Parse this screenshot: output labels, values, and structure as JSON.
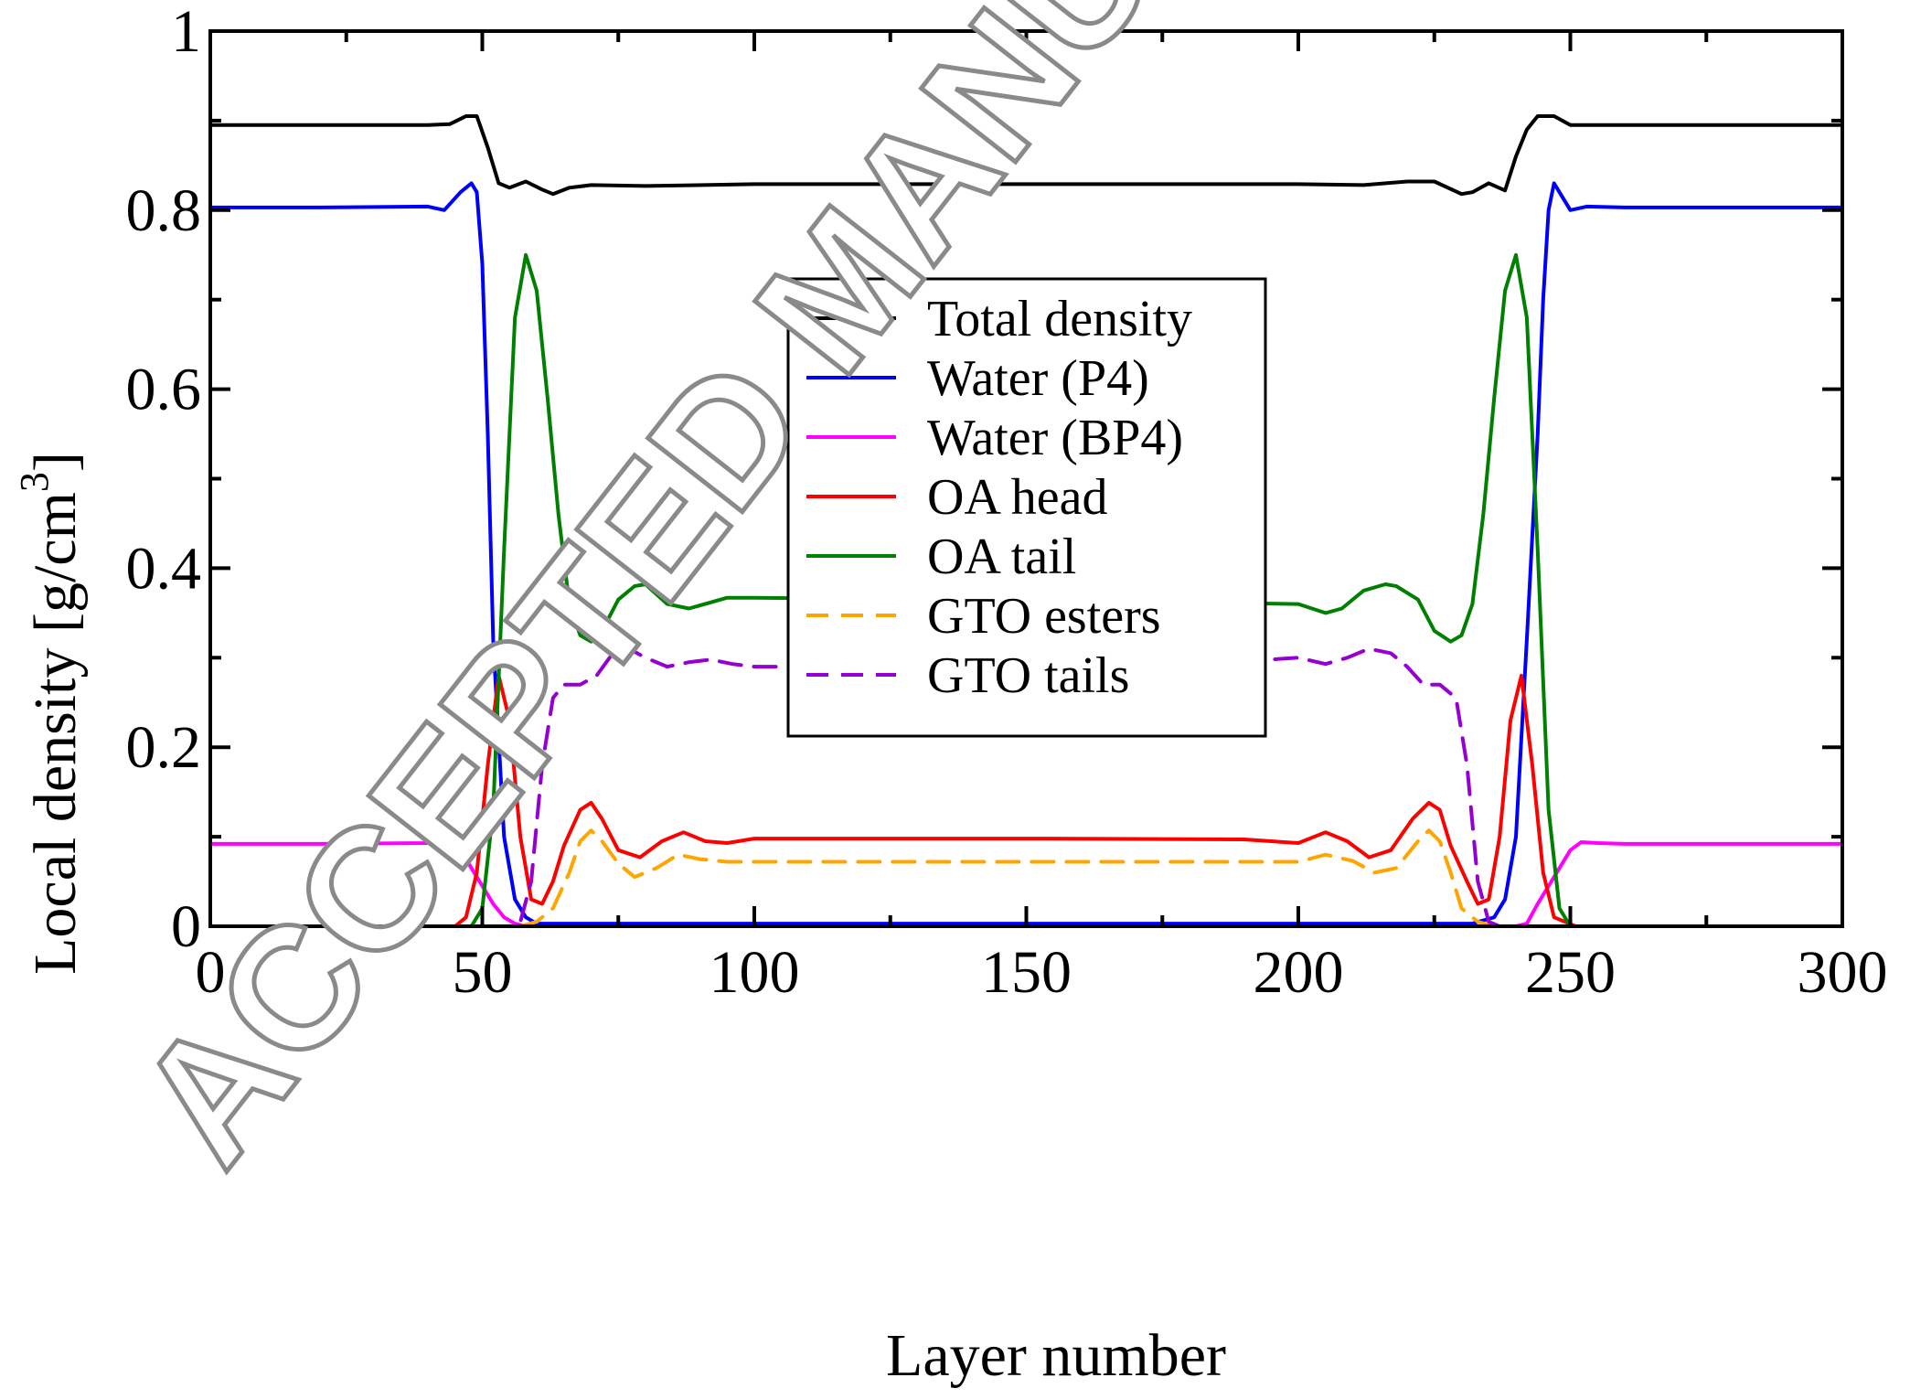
{
  "watermark": "ACCEPTED MANUSCRIPT",
  "chart_data": {
    "type": "line",
    "title": "",
    "xlabel": "Layer number",
    "ylabel": "Local density [g/cm",
    "ylabel_superscript": "3",
    "ylabel_suffix": "]",
    "xlim": [
      0,
      300
    ],
    "ylim": [
      0,
      1
    ],
    "xticks": [
      0,
      50,
      100,
      150,
      200,
      250,
      300
    ],
    "xtick_labels": [
      "0",
      "50",
      "100",
      "150",
      "200",
      "250",
      "300"
    ],
    "yticks": [
      0,
      0.2,
      0.4,
      0.6,
      0.8,
      1
    ],
    "ytick_labels": [
      "0",
      "0.2",
      "0.4",
      "0.6",
      "0.8",
      "1"
    ],
    "grid": false,
    "legend_position": "upper-center",
    "series": [
      {
        "name": "Total density",
        "color": "#000000",
        "dash": "solid",
        "x": [
          0,
          20,
          40,
          44,
          47,
          49,
          51,
          53,
          55,
          58,
          61,
          63,
          66,
          70,
          80,
          100,
          150,
          200,
          212,
          220,
          225,
          230,
          232,
          235,
          238,
          240,
          242,
          244,
          247,
          250,
          260,
          300
        ],
        "y": [
          0.895,
          0.895,
          0.895,
          0.896,
          0.905,
          0.905,
          0.87,
          0.83,
          0.825,
          0.832,
          0.823,
          0.818,
          0.825,
          0.828,
          0.827,
          0.829,
          0.829,
          0.829,
          0.828,
          0.832,
          0.832,
          0.818,
          0.82,
          0.83,
          0.822,
          0.86,
          0.89,
          0.905,
          0.905,
          0.895,
          0.895,
          0.895
        ]
      },
      {
        "name": "Water (P4)",
        "color": "#0000ff",
        "dash": "solid",
        "x": [
          0,
          20,
          40,
          43,
          46,
          48,
          49,
          50,
          51,
          52,
          54,
          56,
          58,
          60,
          64,
          70,
          100,
          150,
          200,
          225,
          232,
          236,
          238,
          240,
          242,
          244,
          245,
          246,
          247,
          248,
          250,
          253,
          260,
          300
        ],
        "y": [
          0.803,
          0.803,
          0.804,
          0.8,
          0.82,
          0.83,
          0.82,
          0.74,
          0.55,
          0.32,
          0.1,
          0.03,
          0.01,
          0.003,
          0.003,
          0.003,
          0.003,
          0.003,
          0.003,
          0.003,
          0.003,
          0.01,
          0.03,
          0.1,
          0.32,
          0.55,
          0.7,
          0.8,
          0.83,
          0.82,
          0.8,
          0.804,
          0.803,
          0.803
        ]
      },
      {
        "name": "Water (BP4)",
        "color": "#ff00ff",
        "dash": "solid",
        "x": [
          0,
          20,
          40,
          43,
          46,
          48,
          50,
          52,
          54,
          56,
          58,
          60,
          240,
          242,
          244,
          246,
          248,
          250,
          252,
          255,
          260,
          300
        ],
        "y": [
          0.092,
          0.092,
          0.093,
          0.094,
          0.085,
          0.065,
          0.045,
          0.025,
          0.01,
          0.003,
          0,
          0,
          0,
          0.003,
          0.025,
          0.045,
          0.065,
          0.085,
          0.094,
          0.093,
          0.092,
          0.092
        ]
      },
      {
        "name": "OA head",
        "color": "#ff0000",
        "dash": "solid",
        "x": [
          0,
          45,
          47,
          49,
          51,
          53,
          55,
          57,
          59,
          61,
          63,
          65,
          68,
          70,
          72,
          75,
          79,
          83,
          87,
          91,
          95,
          100,
          110,
          150,
          190,
          200,
          205,
          209,
          213,
          217,
          221,
          224,
          226,
          228,
          231,
          233,
          235,
          237,
          239,
          241,
          243,
          245,
          247,
          251,
          300
        ],
        "y": [
          0,
          0,
          0.01,
          0.06,
          0.18,
          0.28,
          0.23,
          0.1,
          0.03,
          0.025,
          0.05,
          0.09,
          0.13,
          0.138,
          0.12,
          0.085,
          0.077,
          0.095,
          0.105,
          0.095,
          0.093,
          0.098,
          0.098,
          0.098,
          0.097,
          0.093,
          0.105,
          0.095,
          0.077,
          0.085,
          0.12,
          0.138,
          0.13,
          0.09,
          0.05,
          0.025,
          0.03,
          0.1,
          0.23,
          0.28,
          0.18,
          0.06,
          0.01,
          0,
          0
        ]
      },
      {
        "name": "OA tail",
        "color": "#008000",
        "dash": "solid",
        "x": [
          0,
          48,
          50,
          52,
          54,
          56,
          58,
          60,
          62,
          64,
          66,
          68,
          70,
          72,
          75,
          78,
          80,
          84,
          88,
          95,
          100,
          150,
          200,
          205,
          208,
          212,
          216,
          218,
          222,
          225,
          228,
          230,
          232,
          234,
          236,
          238,
          240,
          242,
          244,
          246,
          248,
          250,
          300
        ],
        "y": [
          0,
          0,
          0.02,
          0.13,
          0.42,
          0.68,
          0.75,
          0.71,
          0.59,
          0.46,
          0.36,
          0.325,
          0.318,
          0.33,
          0.365,
          0.38,
          0.382,
          0.36,
          0.355,
          0.367,
          0.367,
          0.364,
          0.36,
          0.35,
          0.355,
          0.375,
          0.382,
          0.38,
          0.365,
          0.33,
          0.318,
          0.325,
          0.36,
          0.46,
          0.59,
          0.71,
          0.75,
          0.68,
          0.42,
          0.13,
          0.02,
          0,
          0
        ]
      },
      {
        "name": "GTO esters",
        "color": "#ffa500",
        "dash": "dashed",
        "x": [
          0,
          57,
          60,
          63,
          66,
          68,
          70,
          72,
          75,
          78,
          82,
          86,
          90,
          95,
          100,
          150,
          200,
          205,
          210,
          214,
          218,
          222,
          224,
          226,
          228,
          230,
          233,
          236,
          240,
          300
        ],
        "y": [
          0,
          0,
          0.005,
          0.02,
          0.06,
          0.095,
          0.107,
          0.095,
          0.07,
          0.055,
          0.065,
          0.08,
          0.075,
          0.072,
          0.072,
          0.072,
          0.072,
          0.08,
          0.073,
          0.06,
          0.065,
          0.095,
          0.107,
          0.095,
          0.06,
          0.02,
          0.005,
          0,
          0,
          0
        ]
      },
      {
        "name": "GTO tails",
        "color": "#9400d3",
        "dash": "dashed",
        "x": [
          0,
          55,
          57,
          59,
          61,
          63,
          65,
          68,
          71,
          74,
          77,
          80,
          84,
          88,
          92,
          96,
          100,
          110,
          150,
          190,
          200,
          205,
          209,
          213,
          217,
          220,
          223,
          226,
          229,
          231,
          233,
          235,
          237,
          239,
          241,
          300
        ],
        "y": [
          0,
          0,
          0.005,
          0.05,
          0.18,
          0.255,
          0.27,
          0.27,
          0.28,
          0.305,
          0.31,
          0.3,
          0.29,
          0.295,
          0.298,
          0.293,
          0.29,
          0.29,
          0.293,
          0.296,
          0.3,
          0.293,
          0.3,
          0.31,
          0.305,
          0.29,
          0.27,
          0.27,
          0.255,
          0.18,
          0.05,
          0.005,
          0,
          0,
          0,
          0
        ]
      }
    ]
  }
}
